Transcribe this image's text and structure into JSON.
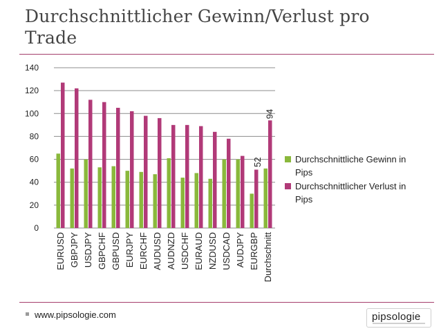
{
  "slide": {
    "title": "Durchschnittlicher Gewinn/Verlust pro Trade",
    "footer_url": "www.pipsologie.com",
    "logo_text": "pipsologie"
  },
  "colors": {
    "accent_rule": "#a43d6b",
    "gain": "#8ab83c",
    "loss": "#b13a78"
  },
  "chart_data": {
    "type": "bar",
    "categories": [
      "EURUSD",
      "GBPJPY",
      "USDJPY",
      "GBPCHF",
      "GBPUSD",
      "EURJPY",
      "EURCHF",
      "AUDUSD",
      "AUDNZD",
      "USDCHF",
      "EURAUD",
      "NZDUSD",
      "USDCAD",
      "AUDJPY",
      "EURGBP",
      "Durchschnitt"
    ],
    "series": [
      {
        "name": "Durchschnittliche Gewinn in Pips",
        "values": [
          65,
          52,
          60,
          53,
          54,
          50,
          49,
          47,
          61,
          44,
          48,
          43,
          60,
          60,
          30,
          52
        ]
      },
      {
        "name": "Durchschnittlicher Verlust in Pips",
        "values": [
          127,
          122,
          112,
          110,
          105,
          102,
          98,
          96,
          90,
          90,
          89,
          84,
          78,
          63,
          51,
          94
        ]
      }
    ],
    "data_labels": [
      {
        "category": "Durchschnitt",
        "series": 0,
        "text": "52"
      },
      {
        "category": "Durchschnitt",
        "series": 1,
        "text": "94"
      }
    ],
    "yticks": [
      "0",
      "20",
      "40",
      "60",
      "80",
      "100",
      "120",
      "140"
    ],
    "ylim": [
      0,
      140
    ],
    "grid": true,
    "legend": "right"
  }
}
